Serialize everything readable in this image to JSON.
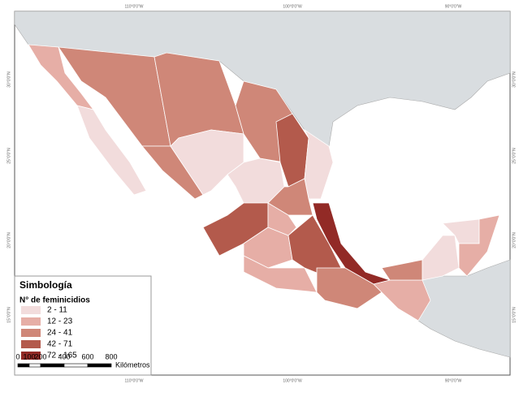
{
  "map": {
    "graticule": {
      "top": [
        "110°0'0\"W",
        "100°0'0\"W",
        "90°0'0\"W"
      ],
      "bottom": [
        "110°0'0\"W",
        "100°0'0\"W",
        "90°0'0\"W"
      ],
      "left": [
        "30°0'0\"N",
        "25°0'0\"N",
        "20°0'0\"N",
        "15°0'0\"N"
      ],
      "right": [
        "30°0'0\"N",
        "25°0'0\"N",
        "20°0'0\"N",
        "15°0'0\"N"
      ]
    },
    "legend": {
      "title": "Simbología",
      "subtitle": "N° de feminicidios",
      "classes": [
        {
          "label": "2 - 11",
          "color": "#f2dcdc"
        },
        {
          "label": "12 - 23",
          "color": "#e6aea6"
        },
        {
          "label": "24 - 41",
          "color": "#cf8778"
        },
        {
          "label": "42 - 71",
          "color": "#b35a4c"
        },
        {
          "label": "72 - 165",
          "color": "#922a26"
        }
      ]
    },
    "scale_bar": {
      "labels": [
        "0",
        "100",
        "200",
        "400",
        "600",
        "800"
      ],
      "unit": "Kilómetros"
    }
  }
}
